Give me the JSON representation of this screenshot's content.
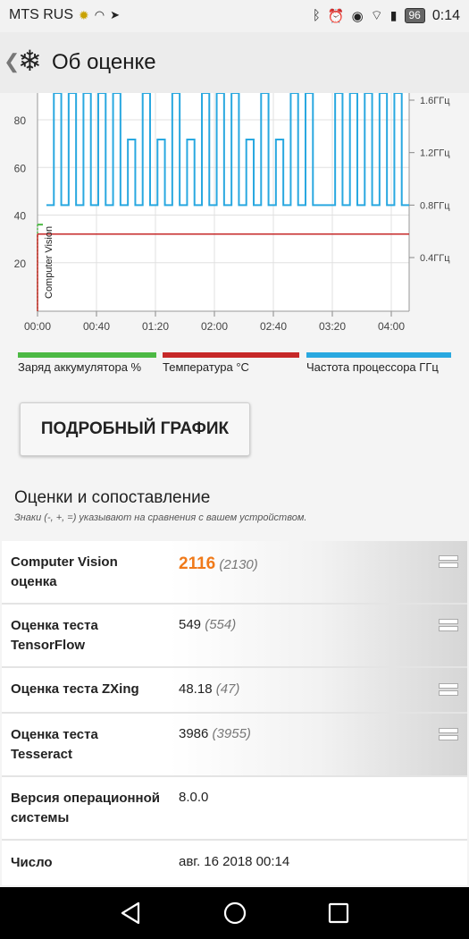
{
  "status": {
    "carrier": "MTS RUS",
    "battery": "96",
    "time": "0:14"
  },
  "header": {
    "title": "Об оценке"
  },
  "chart_data": {
    "type": "line",
    "x_ticks": [
      "00:00",
      "00:40",
      "01:20",
      "02:00",
      "02:40",
      "03:20",
      "04:00"
    ],
    "y_left_ticks": [
      "20",
      "40",
      "60",
      "80"
    ],
    "y_right_ticks": [
      "0.4ГГц",
      "0.8ГГц",
      "1.2ГГц",
      "1.6ГГц"
    ],
    "annotation": "Computer Vision",
    "series": [
      {
        "name": "Заряд аккумулятора %",
        "color": "#4cb944",
        "values": [
          36,
          36
        ]
      },
      {
        "name": "Температура °C",
        "color": "#c62828",
        "values": [
          32,
          32
        ]
      },
      {
        "name": "Частота процессора ГГц",
        "color": "#29a8e0",
        "values": [
          0.8,
          1.7,
          0.8,
          1.7,
          0.8,
          1.7,
          0.8,
          1.7,
          0.8,
          1.7,
          0.8,
          1.3,
          0.8,
          1.7,
          0.8,
          1.3,
          0.8,
          1.7,
          0.8,
          1.3,
          0.8,
          1.7,
          0.8,
          1.7,
          0.8,
          1.7,
          0.8,
          1.3,
          0.8,
          1.7,
          0.8,
          1.3,
          0.8,
          1.7,
          0.8,
          1.7,
          0.8,
          0.8,
          0.8,
          1.7,
          0.8,
          1.7,
          0.8,
          1.7,
          0.8,
          1.7,
          0.8,
          1.7,
          0.8
        ]
      }
    ]
  },
  "button": {
    "label": "ПОДРОБНЫЙ ГРАФИК"
  },
  "section": {
    "title": "Оценки и сопоставление",
    "note": "Знаки (-, +, =) указывают на сравнения с вашем устройством."
  },
  "rows": [
    {
      "label": "Computer Vision оценка",
      "value": "2116",
      "ref": "(2130)",
      "cmp": "="
    },
    {
      "label": "Оценка теста TensorFlow",
      "value": "549",
      "ref": "(554)",
      "cmp": "="
    },
    {
      "label": "Оценка теста ZXing",
      "value": "48.18",
      "ref": "(47)",
      "cmp": "="
    },
    {
      "label": "Оценка теста Tesseract",
      "value": "3986",
      "ref": "(3955)",
      "cmp": "="
    },
    {
      "label": "Версия операционной системы",
      "value": "8.0.0"
    },
    {
      "label": "Число",
      "value": "авг. 16 2018 00:14"
    }
  ]
}
